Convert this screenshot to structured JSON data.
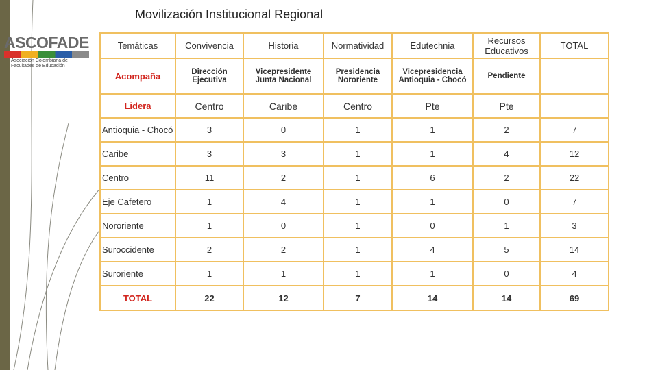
{
  "header": {
    "title": "Movilización Institucional Regional"
  },
  "logo": {
    "name": "ASCOFADE",
    "subtitle": [
      "Asociación Colombiana de",
      "Facultades de Educación"
    ]
  },
  "table": {
    "columns": [
      "Temáticas",
      "Convivencia",
      "Historia",
      "Normatividad",
      "Edutechnia",
      "Recursos Educativos",
      "TOTAL"
    ],
    "acompana": [
      "Acompaña",
      "Dirección Ejecutiva",
      "Vicepresidente Junta Nacional",
      "Presidencia Nororiente",
      "Vicepresidencia Antioquia - Chocó",
      "Pendiente"
    ],
    "lidera": [
      "Lidera",
      "Centro",
      "Caribe",
      "Centro",
      "Pte",
      "Pte"
    ],
    "rows": [
      [
        "Antioquia - Chocó",
        3,
        0,
        1,
        1,
        2,
        7
      ],
      [
        "Caribe",
        3,
        3,
        1,
        1,
        4,
        12
      ],
      [
        "Centro",
        11,
        2,
        1,
        6,
        2,
        22
      ],
      [
        "Eje Cafetero",
        1,
        4,
        1,
        1,
        0,
        7
      ],
      [
        "Nororiente",
        1,
        0,
        1,
        0,
        1,
        3
      ],
      [
        "Suroccidente",
        2,
        2,
        1,
        4,
        5,
        14
      ],
      [
        "Suroriente",
        1,
        1,
        1,
        1,
        0,
        4
      ]
    ],
    "total": [
      "TOTAL",
      22,
      12,
      7,
      14,
      14,
      69
    ]
  }
}
